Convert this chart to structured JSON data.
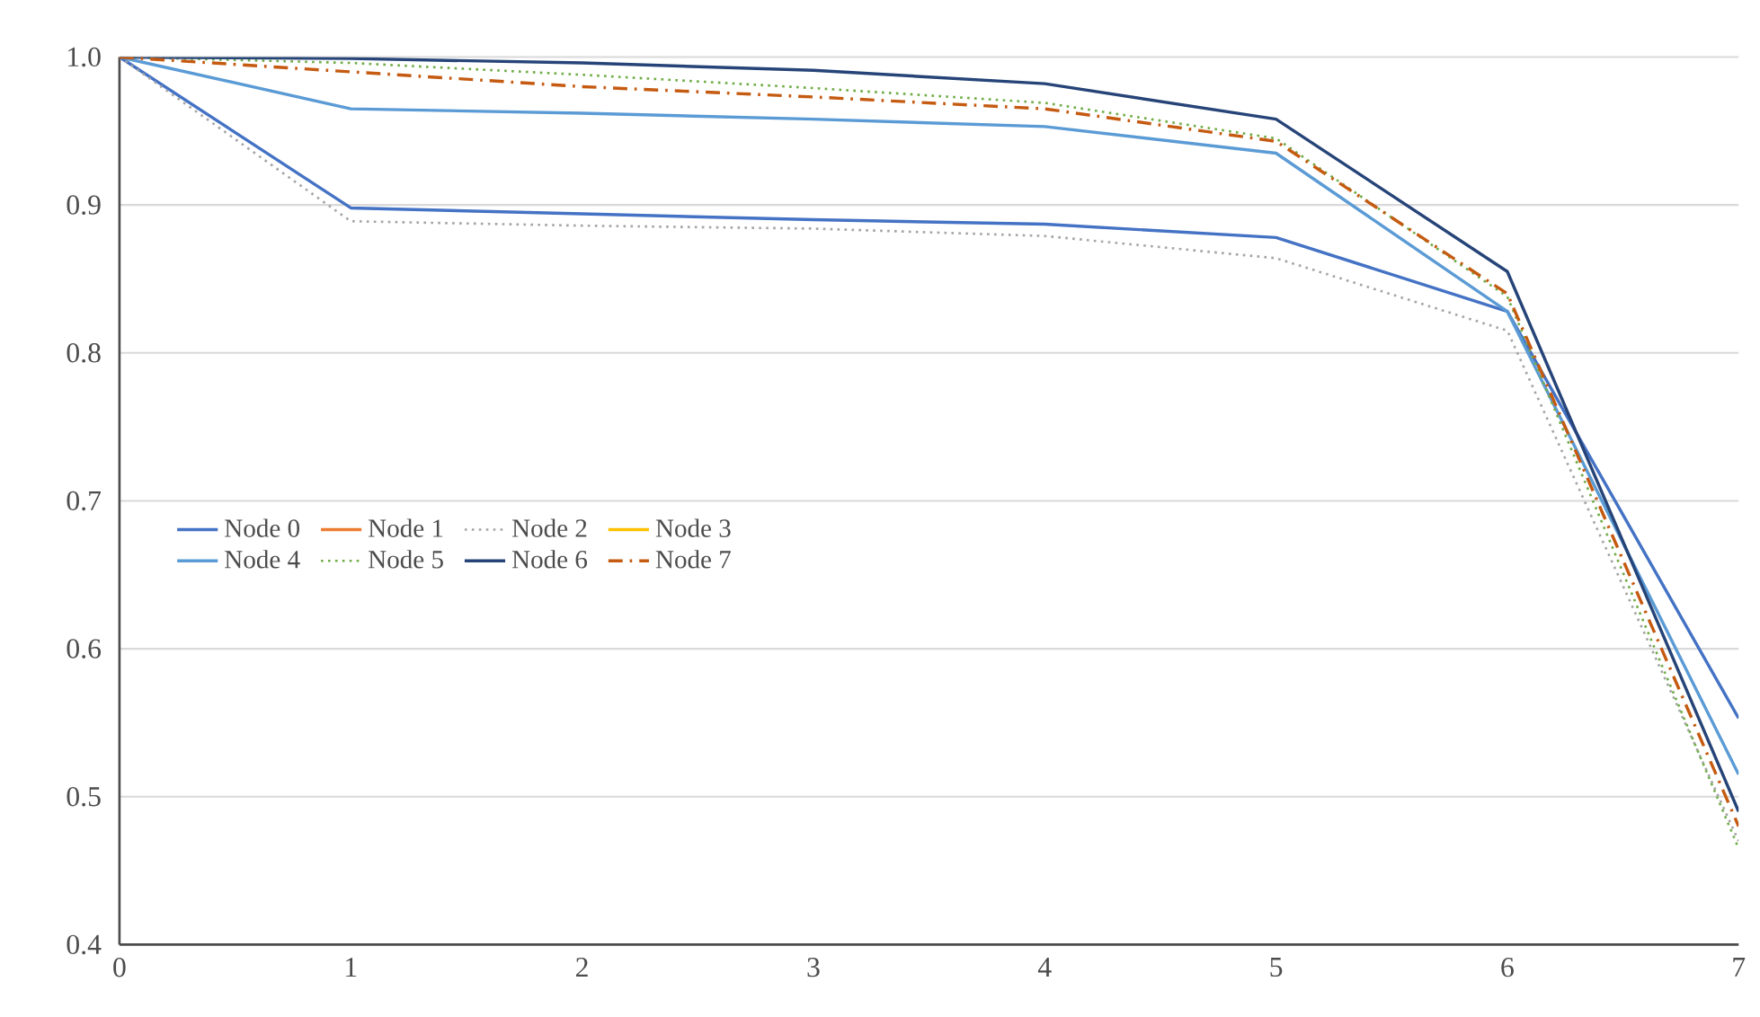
{
  "chart_data": {
    "type": "line",
    "x": [
      0,
      1,
      2,
      3,
      4,
      5,
      6,
      7
    ],
    "series": [
      {
        "name": "Node 0",
        "color": "#4472c4",
        "line_style": "solid",
        "values": [
          1.0,
          0.898,
          0.894,
          0.89,
          0.887,
          0.878,
          0.828,
          0.553
        ]
      },
      {
        "name": "Node 1",
        "color": "#ed7d31",
        "line_style": "solid",
        "values": [
          null,
          null,
          null,
          null,
          null,
          null,
          null,
          null
        ]
      },
      {
        "name": "Node 2",
        "color": "#a5a5a5",
        "line_style": "dotted",
        "values": [
          1.0,
          0.889,
          0.886,
          0.884,
          0.879,
          0.864,
          0.815,
          0.47
        ]
      },
      {
        "name": "Node 3",
        "color": "#ffc000",
        "line_style": "solid",
        "values": [
          null,
          null,
          null,
          null,
          null,
          null,
          null,
          null
        ]
      },
      {
        "name": "Node 4",
        "color": "#5b9bd5",
        "line_style": "solid",
        "values": [
          1.0,
          0.965,
          0.962,
          0.958,
          0.953,
          0.935,
          0.828,
          0.515
        ]
      },
      {
        "name": "Node 5",
        "color": "#70ad47",
        "line_style": "dotted",
        "values": [
          1.0,
          0.996,
          0.988,
          0.979,
          0.969,
          0.945,
          0.838,
          0.465
        ]
      },
      {
        "name": "Node 6",
        "color": "#264478",
        "line_style": "solid",
        "values": [
          1.0,
          0.999,
          0.996,
          0.991,
          0.982,
          0.958,
          0.855,
          0.49
        ]
      },
      {
        "name": "Node 7",
        "color": "#c55a11",
        "line_style": "dashdot",
        "values": [
          1.0,
          0.99,
          0.98,
          0.973,
          0.965,
          0.943,
          0.84,
          0.48
        ]
      }
    ],
    "xlim": [
      0,
      7
    ],
    "xticks": [
      0,
      1,
      2,
      3,
      4,
      5,
      6,
      7
    ],
    "ylim": [
      0.4,
      1.0
    ],
    "yticks": [
      {
        "value": 0.4,
        "label": "0.4"
      },
      {
        "value": 0.5,
        "label": "0.5"
      },
      {
        "value": 0.6,
        "label": "0.6"
      },
      {
        "value": 0.7,
        "label": "0.7"
      },
      {
        "value": 0.8,
        "label": "0.8"
      },
      {
        "value": 0.9,
        "label": "0.9"
      },
      {
        "value": 1.0,
        "label": "1.0"
      }
    ],
    "grid": "y",
    "legend": "left",
    "marker": "none"
  }
}
